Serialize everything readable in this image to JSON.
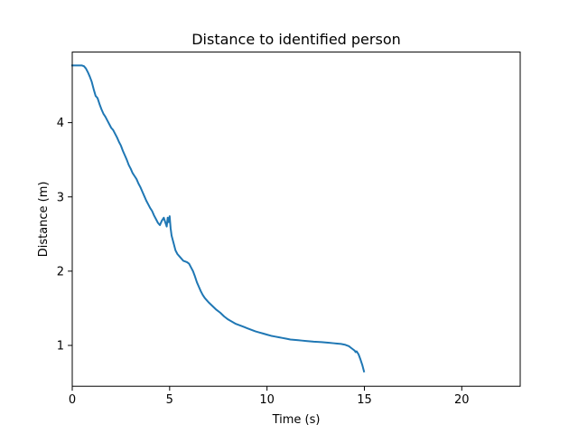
{
  "chart_data": {
    "type": "line",
    "title": "Distance to identified person",
    "xlabel": "Time (s)",
    "ylabel": "Distance (m)",
    "xlim": [
      0,
      23
    ],
    "ylim": [
      0.45,
      4.95
    ],
    "xticks": [
      0,
      5,
      10,
      15,
      20
    ],
    "yticks": [
      1,
      2,
      3,
      4
    ],
    "grid": false,
    "legend": "none",
    "colors": {
      "line": "#1f77b4",
      "axes": "#000000",
      "background": "#ffffff"
    },
    "series": [
      {
        "x": [
          0.0,
          0.1,
          0.2,
          0.3,
          0.4,
          0.5,
          0.6,
          0.7,
          0.8,
          0.9,
          1.0,
          1.1,
          1.2,
          1.3,
          1.4,
          1.5,
          1.6,
          1.7,
          1.8,
          1.9,
          2.0,
          2.1,
          2.2,
          2.3,
          2.4,
          2.5,
          2.6,
          2.7,
          2.8,
          2.9,
          3.0,
          3.1,
          3.2,
          3.3,
          3.4,
          3.5,
          3.6,
          3.7,
          3.8,
          3.9,
          4.0,
          4.1,
          4.2,
          4.3,
          4.4,
          4.5,
          4.6,
          4.7,
          4.8,
          4.85,
          4.9,
          4.95,
          5.0,
          5.05,
          5.1,
          5.2,
          5.3,
          5.4,
          5.5,
          5.6,
          5.7,
          5.8,
          5.9,
          6.0,
          6.1,
          6.2,
          6.3,
          6.4,
          6.5,
          6.6,
          6.7,
          6.8,
          6.9,
          7.0,
          7.2,
          7.4,
          7.6,
          7.8,
          8.0,
          8.2,
          8.4,
          8.6,
          8.8,
          9.0,
          9.2,
          9.4,
          9.6,
          9.8,
          10.0,
          10.2,
          10.4,
          10.6,
          10.8,
          11.0,
          11.2,
          11.4,
          11.6,
          11.8,
          12.0,
          12.2,
          12.4,
          12.6,
          12.8,
          13.0,
          13.2,
          13.4,
          13.6,
          13.8,
          14.0,
          14.1,
          14.2,
          14.3,
          14.4,
          14.5,
          14.55,
          14.6,
          14.7,
          14.8,
          14.9,
          14.98
        ],
        "y": [
          4.77,
          4.77,
          4.77,
          4.77,
          4.77,
          4.77,
          4.76,
          4.73,
          4.68,
          4.62,
          4.55,
          4.45,
          4.36,
          4.33,
          4.25,
          4.18,
          4.12,
          4.08,
          4.03,
          3.98,
          3.93,
          3.9,
          3.85,
          3.8,
          3.74,
          3.69,
          3.62,
          3.56,
          3.5,
          3.43,
          3.38,
          3.32,
          3.28,
          3.24,
          3.18,
          3.13,
          3.07,
          3.01,
          2.95,
          2.9,
          2.85,
          2.81,
          2.75,
          2.7,
          2.65,
          2.62,
          2.68,
          2.72,
          2.64,
          2.6,
          2.72,
          2.66,
          2.74,
          2.58,
          2.48,
          2.38,
          2.28,
          2.23,
          2.2,
          2.17,
          2.14,
          2.13,
          2.12,
          2.1,
          2.05,
          2.0,
          1.93,
          1.85,
          1.79,
          1.73,
          1.68,
          1.64,
          1.61,
          1.58,
          1.53,
          1.48,
          1.44,
          1.39,
          1.35,
          1.32,
          1.29,
          1.27,
          1.25,
          1.23,
          1.21,
          1.19,
          1.175,
          1.16,
          1.145,
          1.13,
          1.12,
          1.11,
          1.1,
          1.09,
          1.08,
          1.075,
          1.07,
          1.065,
          1.06,
          1.055,
          1.05,
          1.048,
          1.045,
          1.04,
          1.035,
          1.03,
          1.025,
          1.02,
          1.01,
          1.0,
          0.99,
          0.97,
          0.95,
          0.93,
          0.91,
          0.92,
          0.88,
          0.81,
          0.73,
          0.65
        ]
      }
    ]
  }
}
